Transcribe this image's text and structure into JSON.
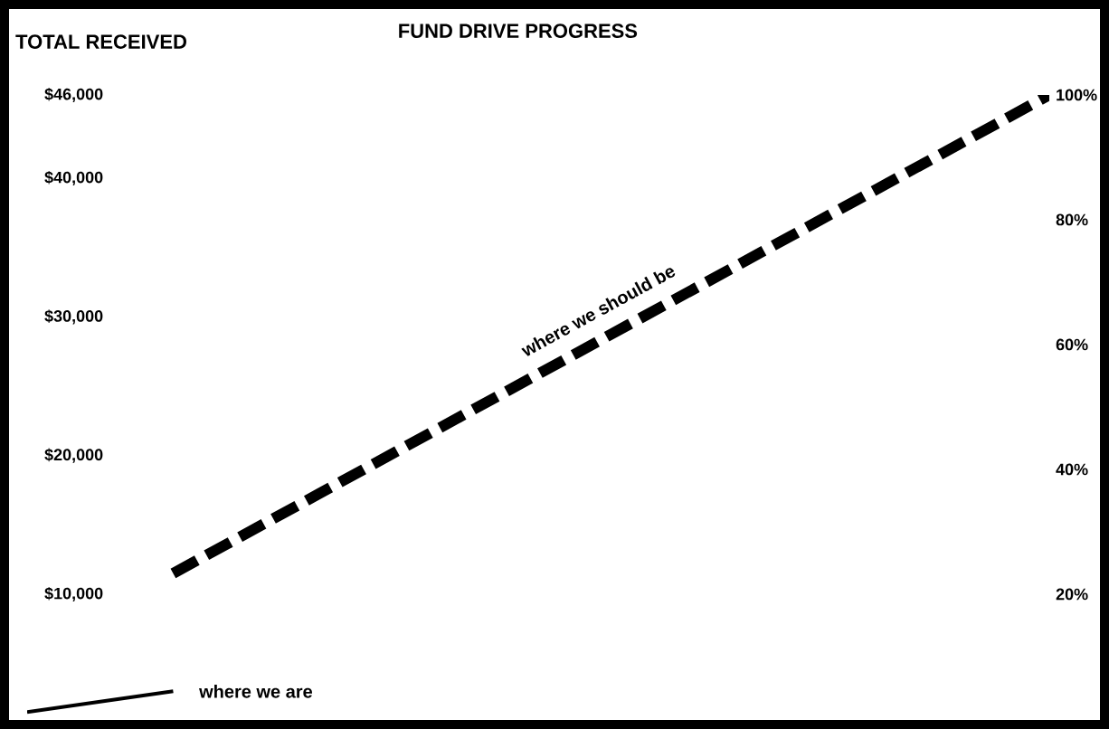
{
  "chart_data": {
    "type": "line",
    "title": "FUND DRIVE PROGRESS",
    "ylabel": "TOTAL RECEIVED",
    "categories": [
      null,
      null,
      null,
      null,
      null,
      null,
      null,
      null
    ],
    "series": [
      {
        "name": "where we should be",
        "color": "#000000",
        "line_style": "dashed",
        "values": [
          null,
          11500,
          17250,
          23000,
          28750,
          34500,
          40250,
          46000
        ]
      },
      {
        "name": "where we are",
        "color": "#000000",
        "line_style": "solid",
        "values": [
          1500,
          3000,
          null,
          null,
          null,
          null,
          null,
          null
        ]
      }
    ],
    "ylim": [
      1000,
      46000
    ],
    "yticks": [
      {
        "value": 10000,
        "label": "$10,000"
      },
      {
        "value": 20000,
        "label": "$20,000"
      },
      {
        "value": 30000,
        "label": "$30,000"
      },
      {
        "value": 40000,
        "label": "$40,000"
      },
      {
        "value": 46000,
        "label": "$46,000"
      }
    ],
    "y2lim": [
      0,
      100
    ],
    "y2ticks": [
      {
        "value": 20,
        "label": "20%"
      },
      {
        "value": 40,
        "label": "40%"
      },
      {
        "value": 60,
        "label": "60%"
      },
      {
        "value": 80,
        "label": "80%"
      },
      {
        "value": 100,
        "label": "100%"
      }
    ],
    "marker": "none"
  }
}
